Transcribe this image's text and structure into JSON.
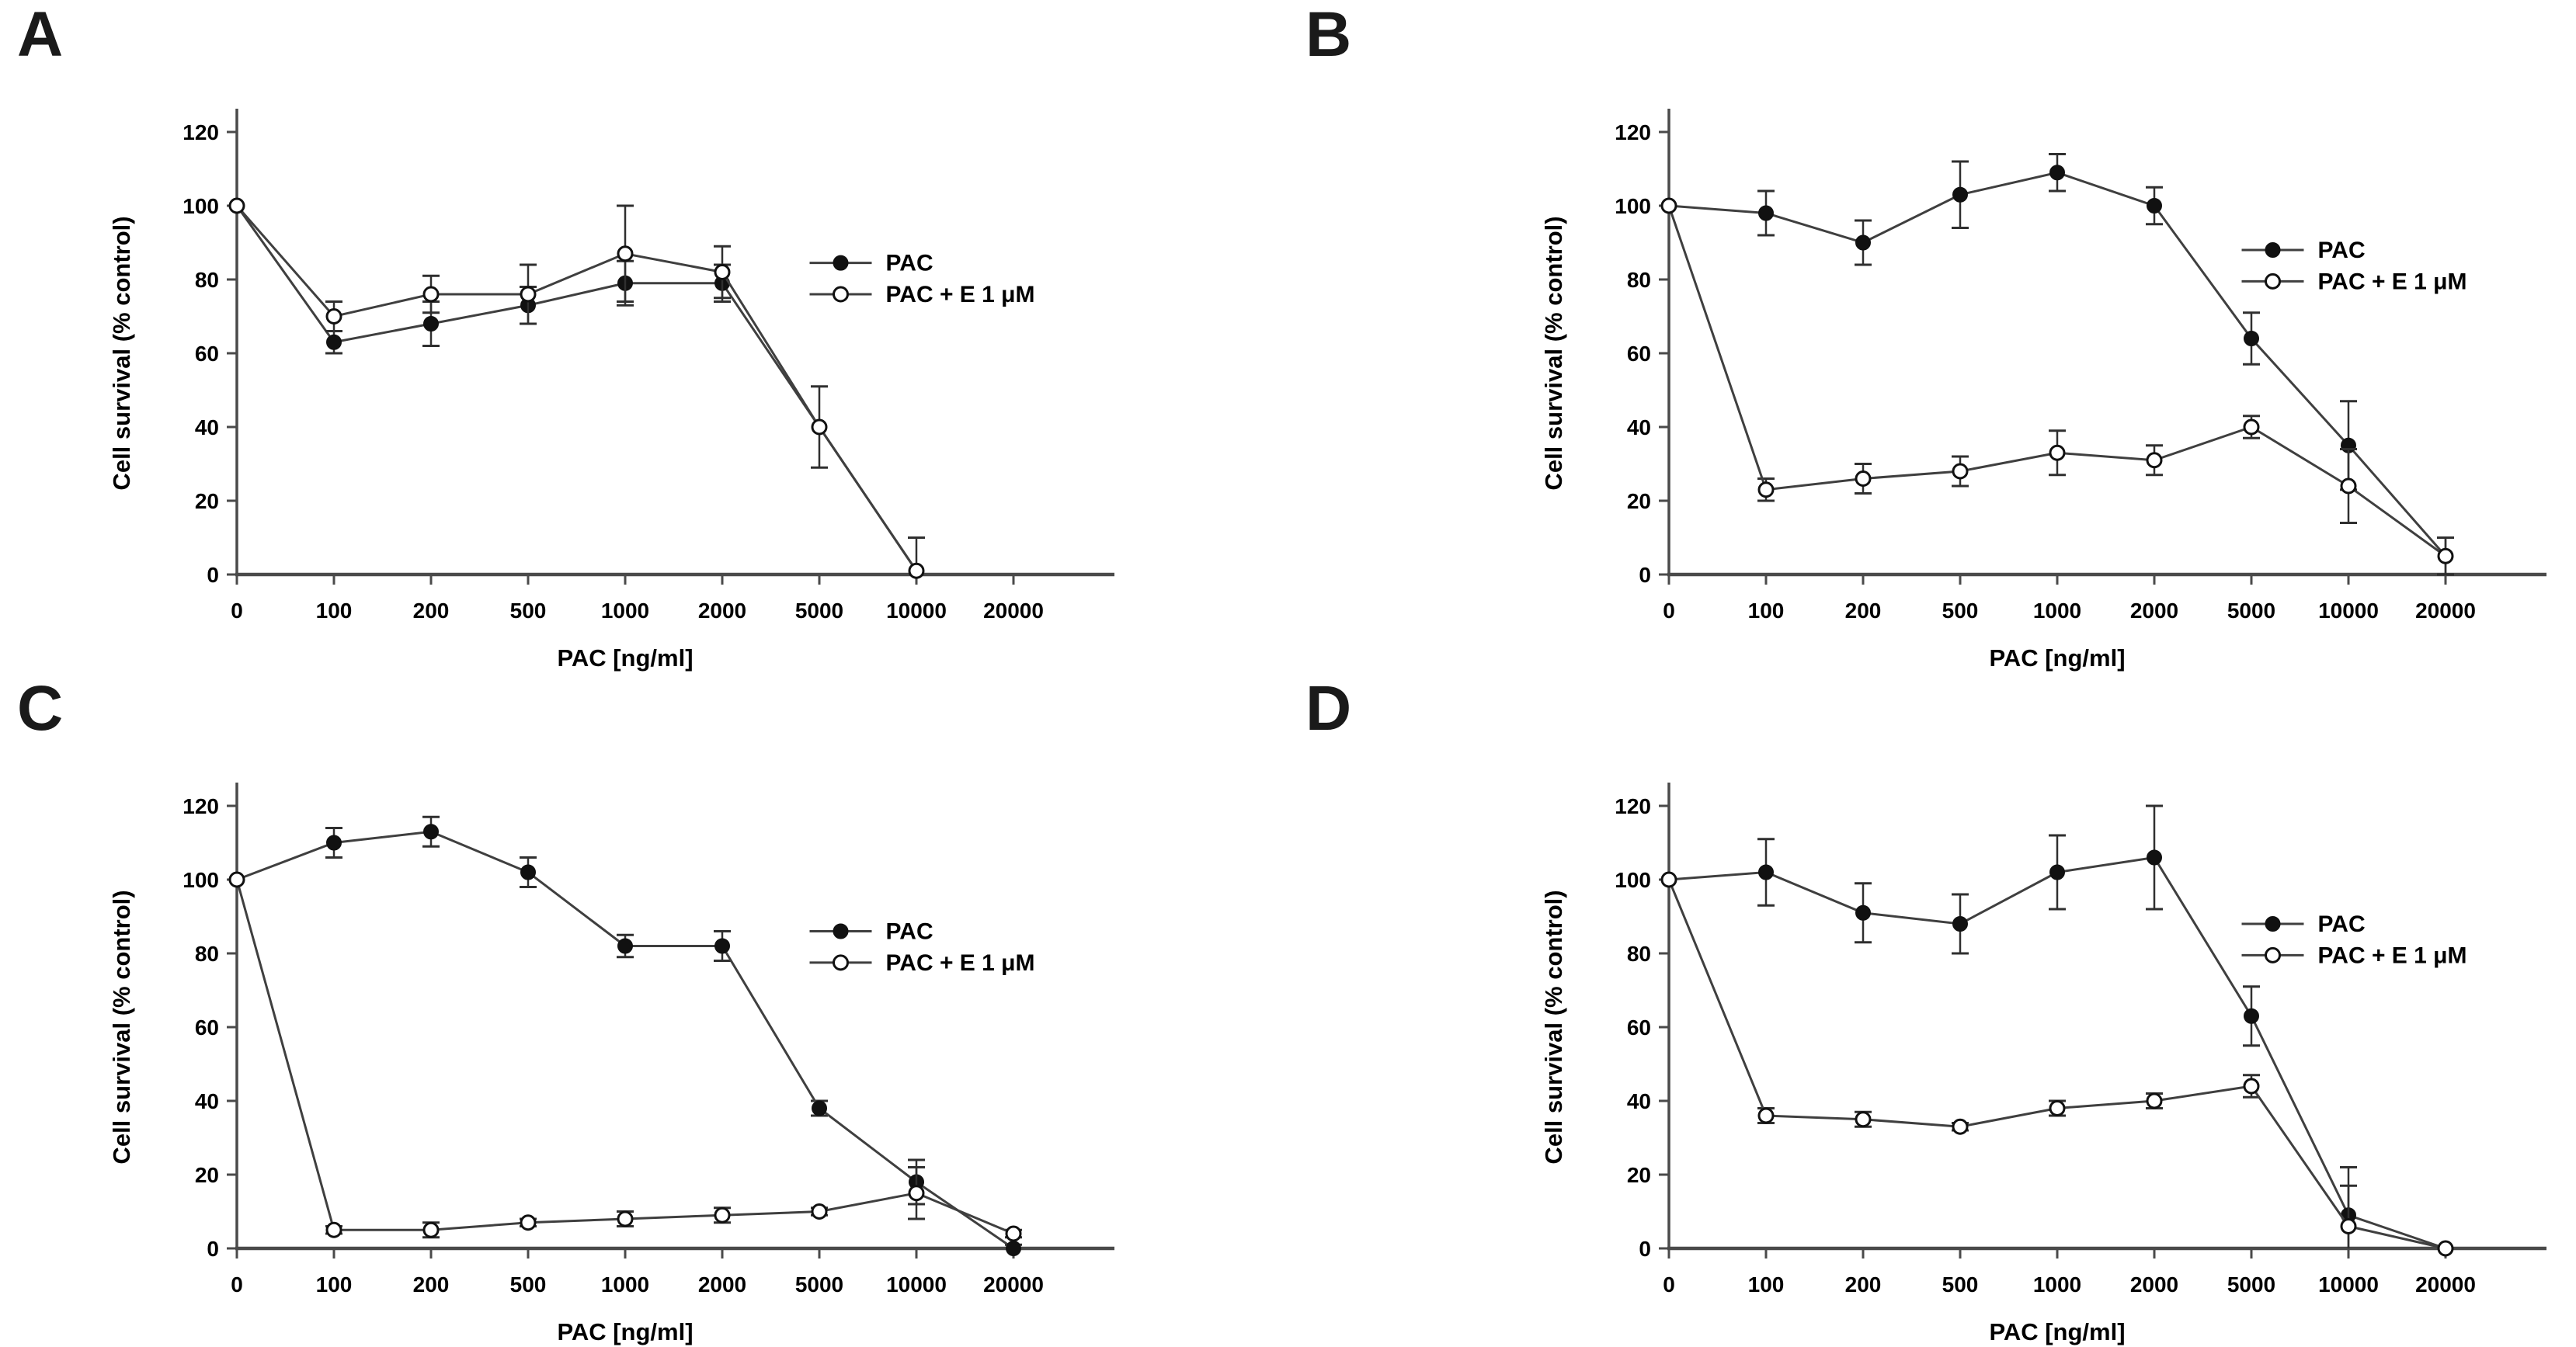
{
  "figure": {
    "background": "#ffffff",
    "axis_color": "#4a4a4a",
    "line_color": "#3f3f3f",
    "marker_color": "#111111",
    "error_color": "#2f2f2f",
    "text_color": "#000000"
  },
  "chart_data": [
    {
      "panel": "A",
      "type": "line",
      "title": "",
      "xlabel": "PAC [ng/ml]",
      "ylabel": "Cell survival (% control)",
      "x_categories": [
        "0",
        "100",
        "200",
        "500",
        "1000",
        "2000",
        "5000",
        "10000",
        "20000"
      ],
      "yticks": [
        0,
        20,
        40,
        60,
        80,
        100,
        120
      ],
      "ylim": [
        0,
        120
      ],
      "grid": false,
      "legend_position": "inside-upper-right",
      "legend_anchor": {
        "xIndex": 5.9,
        "y": 84.5,
        "rowSpacing": 8.5
      },
      "series": [
        {
          "name": "PAC",
          "marker": "filled-circle",
          "values": [
            100,
            63,
            68,
            73,
            79,
            79,
            40,
            1,
            null
          ],
          "errors": [
            0,
            3,
            6,
            5,
            6,
            5,
            0,
            0,
            null
          ]
        },
        {
          "name": "PAC + E 1 μM",
          "marker": "open-circle",
          "values": [
            100,
            70,
            76,
            76,
            87,
            82,
            40,
            1,
            null
          ],
          "errors": [
            0,
            4,
            5,
            8,
            13,
            7,
            11,
            9,
            null
          ]
        }
      ]
    },
    {
      "panel": "B",
      "type": "line",
      "title": "",
      "xlabel": "PAC [ng/ml]",
      "ylabel": "Cell survival (% control)",
      "x_categories": [
        "0",
        "100",
        "200",
        "500",
        "1000",
        "2000",
        "5000",
        "10000",
        "20000"
      ],
      "yticks": [
        0,
        20,
        40,
        60,
        80,
        100,
        120
      ],
      "ylim": [
        0,
        120
      ],
      "grid": false,
      "legend_position": "inside-upper-right",
      "legend_anchor": {
        "xIndex": 5.9,
        "y": 88,
        "rowSpacing": 8.5
      },
      "series": [
        {
          "name": "PAC",
          "marker": "filled-circle",
          "values": [
            100,
            98,
            90,
            103,
            109,
            100,
            64,
            35,
            5
          ],
          "errors": [
            0,
            6,
            6,
            9,
            5,
            5,
            7,
            12,
            5
          ]
        },
        {
          "name": "PAC + E 1 μM",
          "marker": "open-circle",
          "values": [
            100,
            23,
            26,
            28,
            33,
            31,
            40,
            24,
            5
          ],
          "errors": [
            0,
            3,
            4,
            4,
            6,
            4,
            3,
            10,
            5
          ]
        }
      ]
    },
    {
      "panel": "C",
      "type": "line",
      "title": "",
      "xlabel": "PAC [ng/ml]",
      "ylabel": "Cell survival (% control)",
      "x_categories": [
        "0",
        "100",
        "200",
        "500",
        "1000",
        "2000",
        "5000",
        "10000",
        "20000"
      ],
      "yticks": [
        0,
        20,
        40,
        60,
        80,
        100,
        120
      ],
      "ylim": [
        0,
        120
      ],
      "grid": false,
      "legend_position": "inside-upper-right",
      "legend_anchor": {
        "xIndex": 5.9,
        "y": 86,
        "rowSpacing": 8.5
      },
      "series": [
        {
          "name": "PAC",
          "marker": "filled-circle",
          "values": [
            100,
            110,
            113,
            102,
            82,
            82,
            38,
            18,
            0
          ],
          "errors": [
            0,
            4,
            4,
            4,
            3,
            4,
            2,
            6,
            1
          ]
        },
        {
          "name": "PAC + E 1 μM",
          "marker": "open-circle",
          "values": [
            100,
            5,
            5,
            7,
            8,
            9,
            10,
            15,
            4
          ],
          "errors": [
            0,
            1,
            2,
            1,
            2,
            2,
            1,
            7,
            1
          ]
        }
      ]
    },
    {
      "panel": "D",
      "type": "line",
      "title": "",
      "xlabel": "PAC [ng/ml]",
      "ylabel": "Cell survival (% control)",
      "x_categories": [
        "0",
        "100",
        "200",
        "500",
        "1000",
        "2000",
        "5000",
        "10000",
        "20000"
      ],
      "yticks": [
        0,
        20,
        40,
        60,
        80,
        100,
        120
      ],
      "ylim": [
        0,
        120
      ],
      "grid": false,
      "legend_position": "inside-upper-right",
      "legend_anchor": {
        "xIndex": 5.9,
        "y": 88,
        "rowSpacing": 8.5
      },
      "series": [
        {
          "name": "PAC",
          "marker": "filled-circle",
          "values": [
            100,
            102,
            91,
            88,
            102,
            106,
            63,
            9,
            0
          ],
          "errors": [
            0,
            9,
            8,
            8,
            10,
            14,
            8,
            13,
            0
          ]
        },
        {
          "name": "PAC + E 1 μM",
          "marker": "open-circle",
          "values": [
            100,
            36,
            35,
            33,
            38,
            40,
            44,
            6,
            0
          ],
          "errors": [
            0,
            2,
            2,
            1,
            2,
            2,
            3,
            11,
            0
          ]
        }
      ]
    }
  ]
}
